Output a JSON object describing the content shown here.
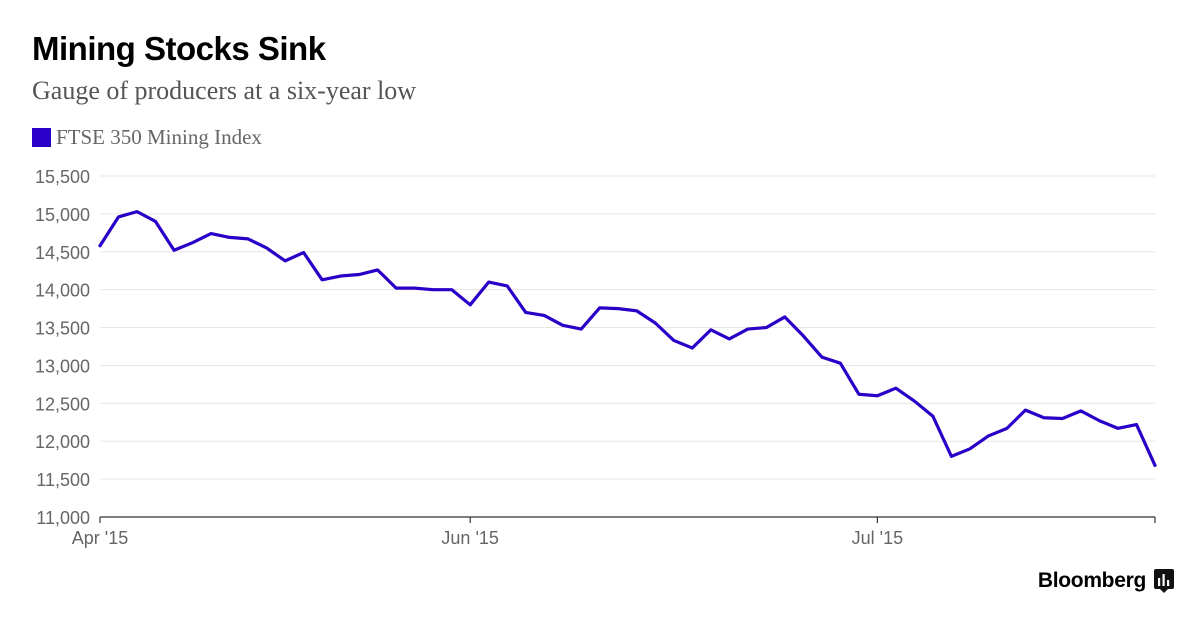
{
  "header": {
    "title": "Mining Stocks Sink",
    "subtitle": "Gauge of producers at a six-year low"
  },
  "footer": {
    "brand": "Bloomberg"
  },
  "colors": {
    "series": "#2a00c8",
    "grid": "#e6e6e6",
    "axis": "#333333"
  },
  "chart_data": {
    "type": "line",
    "title": "Mining Stocks Sink",
    "subtitle": "Gauge of producers at a six-year low",
    "legend": [
      "FTSE 350 Mining Index"
    ],
    "legend_position": "top-left",
    "grid": true,
    "ylim": [
      11000,
      15500
    ],
    "yticks": [
      11000,
      11500,
      12000,
      12500,
      13000,
      13500,
      14000,
      14500,
      15000,
      15500
    ],
    "ytick_labels": [
      "11,000",
      "11,500",
      "12,000",
      "12,500",
      "13,000",
      "13,500",
      "14,000",
      "14,500",
      "15,000",
      "15,500"
    ],
    "xlim": [
      0,
      57
    ],
    "xticks": [
      0,
      20,
      42
    ],
    "xtick_labels": [
      "Apr '15",
      "Jun '15",
      "Jul '15"
    ],
    "series": [
      {
        "name": "FTSE 350 Mining Index",
        "values": [
          14580,
          14960,
          15030,
          14900,
          14520,
          14620,
          14740,
          14690,
          14670,
          14550,
          14380,
          14490,
          14130,
          14180,
          14200,
          14260,
          14020,
          14020,
          14000,
          14000,
          13800,
          14100,
          14050,
          13700,
          13660,
          13530,
          13480,
          13760,
          13750,
          13720,
          13560,
          13330,
          13230,
          13470,
          13350,
          13480,
          13500,
          13640,
          13390,
          13110,
          13030,
          12620,
          12600,
          12700,
          12530,
          12330,
          11800,
          11900,
          12070,
          12170,
          12410,
          12310,
          12300,
          12400,
          12270,
          12170,
          12220,
          11680
        ]
      }
    ]
  }
}
